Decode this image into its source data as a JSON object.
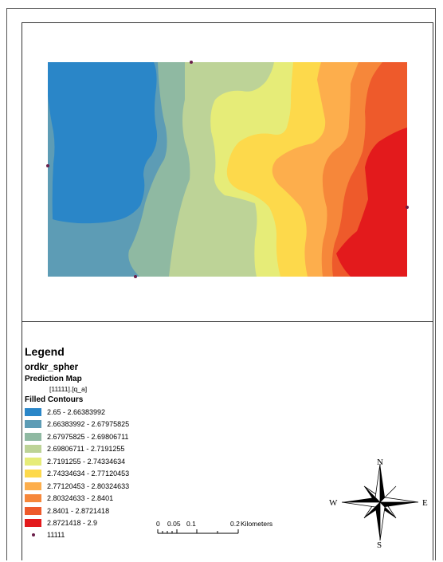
{
  "map": {
    "fill_order": [
      "#2a86c8",
      "#5d9cb5",
      "#8fb9a2",
      "#bdd397",
      "#e6ec78",
      "#fdd94b",
      "#fdae4c",
      "#f6873a",
      "#ee5a2b",
      "#e31a1c"
    ],
    "points_color": "#6a1f4a"
  },
  "legend": {
    "title": "Legend",
    "layer": "ordkr_spher",
    "prediction_map": "Prediction Map",
    "field": "[11111].[q_a]",
    "filled_contours": "Filled Contours",
    "classes": [
      {
        "label": "2.65 - 2.66383992",
        "color": "#2a86c8"
      },
      {
        "label": "2.66383992 - 2.67975825",
        "color": "#5d9cb5"
      },
      {
        "label": "2.67975825 - 2.69806711",
        "color": "#8fb9a2"
      },
      {
        "label": "2.69806711 - 2.7191255",
        "color": "#bdd397"
      },
      {
        "label": "2.7191255 - 2.74334634",
        "color": "#e6ec78"
      },
      {
        "label": "2.74334634 - 2.77120453",
        "color": "#fdd94b"
      },
      {
        "label": "2.77120453 - 2.80324633",
        "color": "#fdae4c"
      },
      {
        "label": "2.80324633 - 2.8401",
        "color": "#f6873a"
      },
      {
        "label": "2.8401 - 2.8721418",
        "color": "#ee5a2b"
      },
      {
        "label": "2.8721418 - 2.9",
        "color": "#e31a1c"
      }
    ],
    "points_label": "11111"
  },
  "scale": {
    "ticks": [
      "0",
      "0.05",
      "0.1",
      "0.2"
    ],
    "unit": "Kilometers"
  },
  "compass": {
    "n": "N",
    "s": "S",
    "e": "E",
    "w": "W"
  }
}
